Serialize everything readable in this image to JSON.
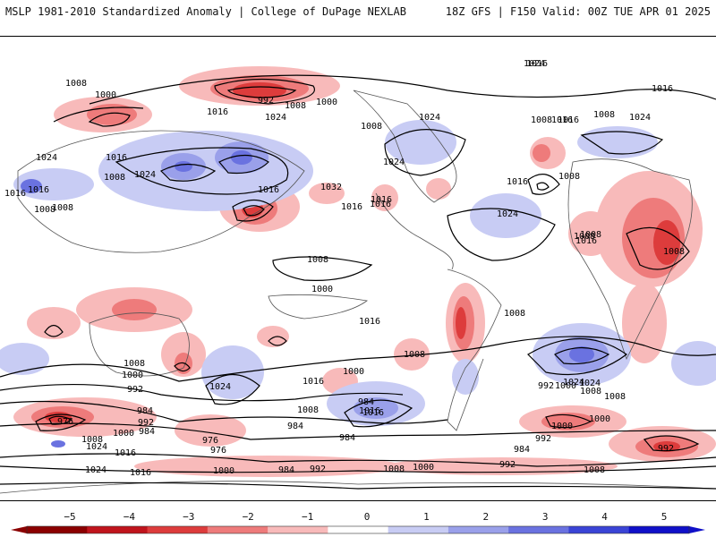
{
  "header": {
    "left_title": "MSLP 1981-2010 Standardized Anomaly | College of DuPage NEXLAB",
    "right_title": "18Z GFS | F150 Valid: 00Z TUE APR 01 2025"
  },
  "colorbar": {
    "ticks": [
      "−5",
      "−4",
      "−3",
      "−2",
      "−1",
      "0",
      "1",
      "2",
      "3",
      "4",
      "5"
    ],
    "colors": [
      "#8b0000",
      "#c0141c",
      "#dd3c3c",
      "#ee7b7b",
      "#f8baba",
      "#ffffff",
      "#c8ccf4",
      "#9aa0ea",
      "#6a72e0",
      "#3a44d6",
      "#1010c8"
    ]
  },
  "isobar_labels": [
    {
      "text": "1008"
    },
    {
      "text": "1000"
    },
    {
      "text": "992"
    },
    {
      "text": "1008"
    },
    {
      "text": "1000"
    },
    {
      "text": "1016"
    },
    {
      "text": "1016"
    },
    {
      "text": "1024"
    },
    {
      "text": "1016"
    },
    {
      "text": "1024"
    },
    {
      "text": "1008"
    },
    {
      "text": "1024"
    },
    {
      "text": "1032"
    },
    {
      "text": "1024"
    },
    {
      "text": "1016"
    },
    {
      "text": "1008"
    },
    {
      "text": "1016"
    },
    {
      "text": "1008"
    },
    {
      "text": "1008"
    },
    {
      "text": "1016"
    },
    {
      "text": "1024"
    },
    {
      "text": "1016"
    },
    {
      "text": "1024"
    },
    {
      "text": "1016"
    },
    {
      "text": "1008"
    },
    {
      "text": "1016"
    },
    {
      "text": "1008"
    },
    {
      "text": "1024"
    },
    {
      "text": "1016"
    },
    {
      "text": "1016"
    },
    {
      "text": "1024"
    },
    {
      "text": "1008"
    },
    {
      "text": "1008"
    },
    {
      "text": "1008"
    },
    {
      "text": "1008"
    },
    {
      "text": "1008"
    },
    {
      "text": "1016"
    },
    {
      "text": "1016"
    },
    {
      "text": "1016"
    },
    {
      "text": "1008"
    },
    {
      "text": "1000"
    },
    {
      "text": "1024"
    },
    {
      "text": "1016"
    },
    {
      "text": "1008"
    },
    {
      "text": "1000"
    },
    {
      "text": "1016"
    },
    {
      "text": "1008"
    },
    {
      "text": "1016"
    },
    {
      "text": "1024"
    },
    {
      "text": "1008"
    },
    {
      "text": "1000"
    },
    {
      "text": "992"
    },
    {
      "text": "1008"
    },
    {
      "text": "1000"
    },
    {
      "text": "992"
    },
    {
      "text": "984"
    },
    {
      "text": "984"
    },
    {
      "text": "992"
    },
    {
      "text": "976"
    },
    {
      "text": "1000"
    },
    {
      "text": "1008"
    },
    {
      "text": "1024"
    },
    {
      "text": "1016"
    },
    {
      "text": "976"
    },
    {
      "text": "984"
    },
    {
      "text": "984"
    },
    {
      "text": "1016"
    },
    {
      "text": "1024"
    },
    {
      "text": "1000"
    },
    {
      "text": "984"
    },
    {
      "text": "992"
    },
    {
      "text": "1008"
    },
    {
      "text": "1000"
    },
    {
      "text": "992"
    },
    {
      "text": "984"
    },
    {
      "text": "992"
    },
    {
      "text": "1024"
    },
    {
      "text": "1016"
    },
    {
      "text": "984"
    },
    {
      "text": "976"
    },
    {
      "text": "1000"
    },
    {
      "text": "1008"
    },
    {
      "text": "992"
    },
    {
      "text": "1000"
    },
    {
      "text": "1008"
    }
  ]
}
